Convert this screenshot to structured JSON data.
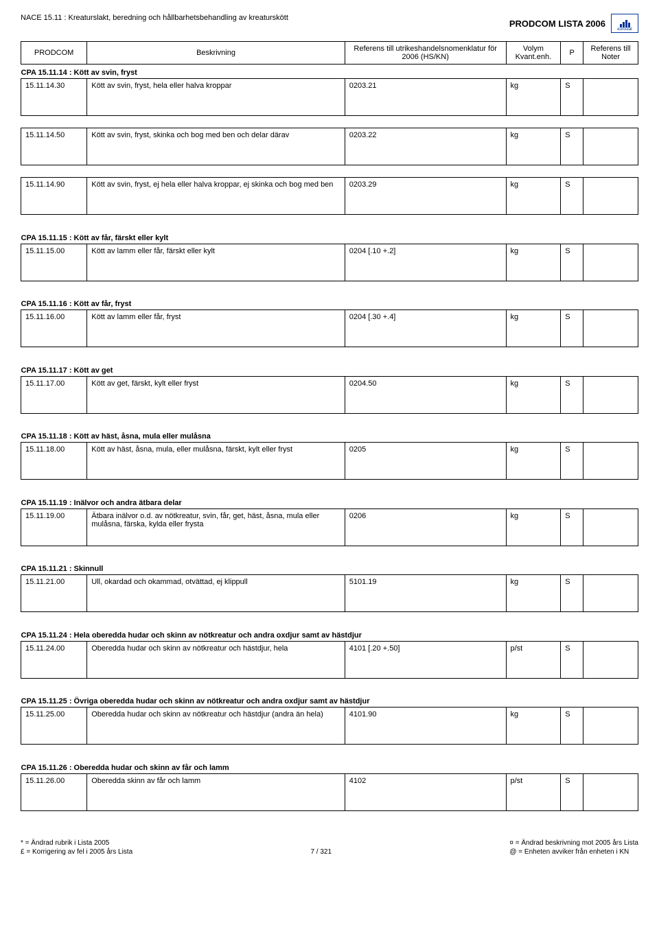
{
  "header": {
    "nace_line": "NACE 15.11 : Kreaturslakt, beredning och hållbarhetsbehandling av kreaturskött",
    "prodcom_title": "PRODCOM LISTA 2006",
    "eurostat": "eurostat"
  },
  "columns": {
    "prodcom": "PRODCOM",
    "beskrivning": "Beskrivning",
    "referens": "Referens till utrikeshandelsnomenklatur för 2006 (HS/KN)",
    "volym": "Volym Kvant.enh.",
    "p": "P",
    "noter": "Referens till Noter"
  },
  "sections": [
    {
      "cpa": "CPA 15.11.14  :  Kött av svin, fryst",
      "rows": [
        {
          "code": "15.11.14.30",
          "desc": "Kött av svin, fryst, hela eller halva kroppar",
          "ref": "0203.21",
          "unit": "kg",
          "p": "S"
        },
        {
          "code": "15.11.14.50",
          "desc": "Kött av svin, fryst, skinka och bog med ben och delar därav",
          "ref": "0203.22",
          "unit": "kg",
          "p": "S"
        },
        {
          "code": "15.11.14.90",
          "desc": "Kött av svin, fryst, ej hela eller halva kroppar, ej skinka och bog med ben",
          "ref": "0203.29",
          "unit": "kg",
          "p": "S"
        }
      ]
    },
    {
      "cpa": "CPA 15.11.15  :  Kött av får, färskt eller kylt",
      "rows": [
        {
          "code": "15.11.15.00",
          "desc": "Kött av lamm eller får, färskt eller kylt",
          "ref": "0204 [.10 +.2]",
          "unit": "kg",
          "p": "S"
        }
      ]
    },
    {
      "cpa": "CPA 15.11.16  :  Kött av får, fryst",
      "rows": [
        {
          "code": "15.11.16.00",
          "desc": "Kött av lamm eller får, fryst",
          "ref": "0204 [.30 +.4]",
          "unit": "kg",
          "p": "S"
        }
      ]
    },
    {
      "cpa": "CPA 15.11.17  :  Kött av get",
      "rows": [
        {
          "code": "15.11.17.00",
          "desc": "Kött av get, färskt, kylt eller fryst",
          "ref": "0204.50",
          "unit": "kg",
          "p": "S"
        }
      ]
    },
    {
      "cpa": "CPA 15.11.18  :  Kött av häst, åsna, mula eller mulåsna",
      "rows": [
        {
          "code": "15.11.18.00",
          "desc": "Kött av häst, åsna, mula, eller mulåsna, färskt, kylt eller fryst",
          "ref": "0205",
          "unit": "kg",
          "p": "S"
        }
      ]
    },
    {
      "cpa": "CPA 15.11.19  :  Inälvor och andra ätbara delar",
      "rows": [
        {
          "code": "15.11.19.00",
          "desc": "Ätbara inälvor o.d. av nötkreatur, svin, får, get, häst, åsna, mula eller mulåsna, färska, kylda eller frysta",
          "ref": "0206",
          "unit": "kg",
          "p": "S"
        }
      ]
    },
    {
      "cpa": "CPA 15.11.21  :  Skinnull",
      "rows": [
        {
          "code": "15.11.21.00",
          "desc": "Ull, okardad och okammad, otvättad, ej klippull",
          "ref": "5101.19",
          "unit": "kg",
          "p": "S"
        }
      ]
    },
    {
      "cpa": "CPA 15.11.24  :  Hela oberedda hudar och skinn av nötkreatur och andra oxdjur samt av hästdjur",
      "rows": [
        {
          "code": "15.11.24.00",
          "desc": "Oberedda hudar och skinn av nötkreatur och hästdjur, hela",
          "ref": "4101 [.20 +.50]",
          "unit": "p/st",
          "p": "S"
        }
      ]
    },
    {
      "cpa": "CPA 15.11.25  :  Övriga oberedda hudar och skinn av nötkreatur och andra oxdjur samt av hästdjur",
      "rows": [
        {
          "code": "15.11.25.00",
          "desc": "Oberedda hudar och skinn av nötkreatur och hästdjur (andra än hela)",
          "ref": "4101.90",
          "unit": "kg",
          "p": "S"
        }
      ]
    },
    {
      "cpa": "CPA 15.11.26  :  Oberedda hudar och skinn av får och lamm",
      "rows": [
        {
          "code": "15.11.26.00",
          "desc": "Oberedda skinn av får och lamm",
          "ref": "4102",
          "unit": "p/st",
          "p": "S"
        }
      ]
    }
  ],
  "footer": {
    "left1": "* = Ändrad rubrik i Lista 2005",
    "left2": "£ = Korrigering av fel i 2005 års Lista",
    "center": "7 / 321",
    "right1": "¤ = Ändrad beskrivning mot 2005 års Lista",
    "right2": "@ = Enheten avviker från enheten i KN"
  }
}
